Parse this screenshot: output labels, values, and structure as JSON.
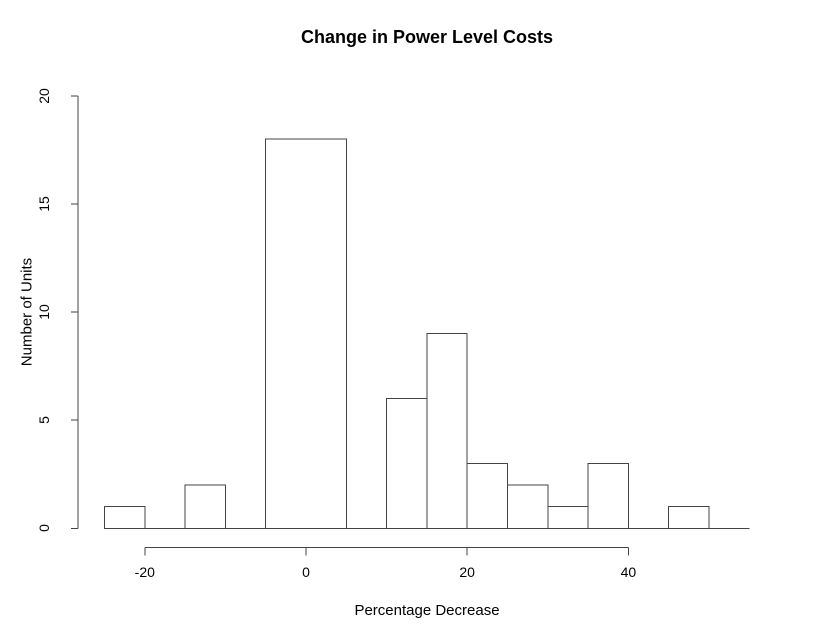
{
  "chart_data": {
    "type": "bar",
    "style": "histogram",
    "title": "Change in Power Level Costs",
    "xlabel": "Percentage Decrease",
    "ylabel": "Number of Units",
    "x_ticks": [
      -20,
      0,
      20,
      40
    ],
    "x_tick_labels": [
      "-20",
      "0",
      "20",
      "40"
    ],
    "y_ticks": [
      0,
      5,
      10,
      15,
      20
    ],
    "y_tick_labels": [
      "0",
      "5",
      "10",
      "15",
      "20"
    ],
    "xlim": [
      -25,
      55
    ],
    "ylim": [
      0,
      20
    ],
    "grid": false,
    "legend": false,
    "background_color": "#ffffff",
    "bar_fill_color": "#ffffff",
    "line_color": "#444444",
    "text_color": "#000000",
    "bins": [
      {
        "x0": -25,
        "x1": -20,
        "count": 1
      },
      {
        "x0": -20,
        "x1": -15,
        "count": 0
      },
      {
        "x0": -15,
        "x1": -10,
        "count": 2
      },
      {
        "x0": -10,
        "x1": -5,
        "count": 0
      },
      {
        "x0": -5,
        "x1": 5,
        "count": 18
      },
      {
        "x0": 5,
        "x1": 10,
        "count": 0
      },
      {
        "x0": 10,
        "x1": 15,
        "count": 6
      },
      {
        "x0": 15,
        "x1": 20,
        "count": 9
      },
      {
        "x0": 20,
        "x1": 25,
        "count": 3
      },
      {
        "x0": 25,
        "x1": 30,
        "count": 2
      },
      {
        "x0": 30,
        "x1": 35,
        "count": 1
      },
      {
        "x0": 35,
        "x1": 40,
        "count": 3
      },
      {
        "x0": 40,
        "x1": 45,
        "count": 0
      },
      {
        "x0": 45,
        "x1": 50,
        "count": 1
      },
      {
        "x0": 50,
        "x1": 55,
        "count": 0
      }
    ]
  }
}
